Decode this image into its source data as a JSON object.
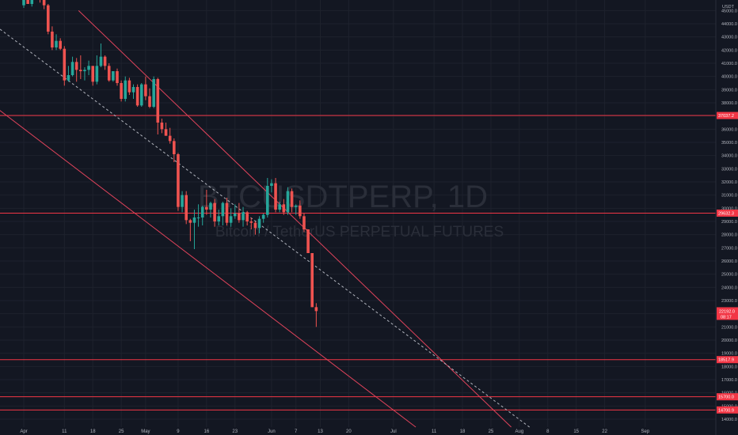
{
  "chart_data": {
    "type": "candlestick",
    "watermark": {
      "title": "BTCUSDTPERP, 1D",
      "subtitle": "Bitcoin / TetherUS PERPETUAL FUTURES"
    },
    "currency": "USDT",
    "ylim": [
      13400,
      45800
    ],
    "y_ticks": [
      14000,
      15000,
      16000,
      17000,
      18000,
      19000,
      20000,
      21000,
      22000,
      23000,
      24000,
      25000,
      26000,
      27000,
      28000,
      29000,
      30000,
      31000,
      32000,
      33000,
      34000,
      35000,
      36000,
      37000,
      38000,
      39000,
      40000,
      41000,
      42000,
      43000,
      44000,
      45000
    ],
    "x_ticks": [
      {
        "label": "Apr",
        "day": 0
      },
      {
        "label": "11",
        "day": 10
      },
      {
        "label": "18",
        "day": 17
      },
      {
        "label": "25",
        "day": 24
      },
      {
        "label": "May",
        "day": 30
      },
      {
        "label": "9",
        "day": 38
      },
      {
        "label": "16",
        "day": 45
      },
      {
        "label": "23",
        "day": 52
      },
      {
        "label": "Jun",
        "day": 61
      },
      {
        "label": "7",
        "day": 67
      },
      {
        "label": "13",
        "day": 73
      },
      {
        "label": "20",
        "day": 80
      },
      {
        "label": "Jul",
        "day": 91
      },
      {
        "label": "11",
        "day": 101
      },
      {
        "label": "18",
        "day": 108
      },
      {
        "label": "25",
        "day": 115
      },
      {
        "label": "Aug",
        "day": 122
      },
      {
        "label": "8",
        "day": 129
      },
      {
        "label": "15",
        "day": 136
      },
      {
        "label": "22",
        "day": 143
      },
      {
        "label": "Sep",
        "day": 153
      }
    ],
    "candles": [
      [
        45400,
        46600,
        45200,
        46300
      ],
      [
        46300,
        47400,
        45600,
        45500
      ],
      [
        45500,
        46000,
        45300,
        46200
      ],
      [
        46200,
        46900,
        45800,
        46300
      ],
      [
        46300,
        46600,
        45600,
        46100
      ],
      [
        46100,
        46400,
        45100,
        45400
      ],
      [
        45400,
        45500,
        43200,
        43400
      ],
      [
        43400,
        43800,
        42000,
        42200
      ],
      [
        42200,
        43200,
        42000,
        42700
      ],
      [
        42700,
        42900,
        42000,
        42100
      ],
      [
        42100,
        42300,
        39300,
        39700
      ],
      [
        39700,
        40800,
        39600,
        40100
      ],
      [
        40100,
        41500,
        40000,
        41100
      ],
      [
        41100,
        41400,
        39600,
        40500
      ],
      [
        40500,
        41600,
        39800,
        40400
      ],
      [
        40400,
        40700,
        39700,
        40500
      ],
      [
        40500,
        41200,
        40100,
        40800
      ],
      [
        40800,
        40800,
        39300,
        39600
      ],
      [
        39600,
        41600,
        39400,
        40800
      ],
      [
        40800,
        42500,
        40700,
        41500
      ],
      [
        41500,
        41600,
        40500,
        40800
      ],
      [
        40800,
        41000,
        39600,
        39700
      ],
      [
        39700,
        40400,
        39600,
        40400
      ],
      [
        40400,
        40600,
        39300,
        39500
      ],
      [
        39500,
        39700,
        38100,
        38300
      ],
      [
        38300,
        40000,
        38100,
        39700
      ],
      [
        39700,
        39900,
        38600,
        38800
      ],
      [
        38800,
        39400,
        38300,
        39200
      ],
      [
        39200,
        39400,
        37700,
        37800
      ],
      [
        37800,
        39500,
        37700,
        39400
      ],
      [
        39400,
        40000,
        38200,
        38500
      ],
      [
        38500,
        39100,
        37600,
        37700
      ],
      [
        37700,
        40000,
        37600,
        39800
      ],
      [
        39800,
        39900,
        35600,
        36500
      ],
      [
        36500,
        36800,
        35700,
        36000
      ],
      [
        36000,
        36500,
        35500,
        35500
      ],
      [
        35500,
        36100,
        34900,
        35100
      ],
      [
        35100,
        35300,
        33500,
        34100
      ],
      [
        34100,
        34200,
        29800,
        30100
      ],
      [
        30100,
        31300,
        29700,
        31000
      ],
      [
        31000,
        31300,
        28800,
        29100
      ],
      [
        29100,
        29200,
        27500,
        28900
      ],
      [
        28900,
        29900,
        26900,
        29300
      ],
      [
        29300,
        30300,
        28600,
        29300
      ],
      [
        29300,
        30200,
        28700,
        30100
      ],
      [
        30100,
        31400,
        29500,
        29900
      ],
      [
        29900,
        30500,
        29300,
        30400
      ],
      [
        30400,
        30700,
        28600,
        29000
      ],
      [
        29000,
        29900,
        28700,
        29400
      ],
      [
        29400,
        30500,
        28700,
        30400
      ],
      [
        30400,
        30800,
        28700,
        28900
      ],
      [
        28900,
        30000,
        28600,
        29400
      ],
      [
        29400,
        30300,
        29200,
        29600
      ],
      [
        29600,
        30400,
        28900,
        29100
      ],
      [
        29100,
        30100,
        28600,
        29700
      ],
      [
        29700,
        29800,
        28700,
        29000
      ],
      [
        29000,
        29300,
        28400,
        28900
      ],
      [
        28900,
        29000,
        28000,
        28500
      ],
      [
        28500,
        29400,
        28100,
        29200
      ],
      [
        29200,
        29600,
        28900,
        29500
      ],
      [
        29500,
        32300,
        29300,
        31700
      ],
      [
        31700,
        32200,
        31200,
        31900
      ],
      [
        31900,
        32300,
        29700,
        29900
      ],
      [
        29900,
        30500,
        29700,
        30300
      ],
      [
        30300,
        30700,
        29500,
        29700
      ],
      [
        29700,
        31600,
        29500,
        31300
      ],
      [
        31300,
        31500,
        29700,
        30100
      ],
      [
        30100,
        30300,
        29500,
        30200
      ],
      [
        30200,
        30600,
        29200,
        29400
      ],
      [
        29400,
        29600,
        28200,
        28400
      ],
      [
        28400,
        28400,
        26600,
        26600
      ],
      [
        26600,
        26600,
        22500,
        22500
      ],
      [
        22500,
        22800,
        21000,
        22200
      ]
    ],
    "levels": [
      {
        "value": 37037.2,
        "label": "37037.2",
        "color": "#f23645"
      },
      {
        "value": 29632.3,
        "label": "29632.3",
        "color": "#f23645"
      },
      {
        "value": 18517.9,
        "label": "18517.9",
        "color": "#f23645"
      },
      {
        "value": 15700.0,
        "label": "15700.0",
        "color": "#f23645"
      },
      {
        "value": 14700.9,
        "label": "14700.9",
        "color": "#f23645"
      }
    ],
    "last_price": {
      "value": 22192.0,
      "label": "22192.0",
      "countdown": "08:17",
      "color": "#f23645"
    },
    "channel": {
      "color": "#e0435b",
      "midline_color": "#b2b5be",
      "upper": [
        [
          13.5,
          45000
        ],
        [
          120,
          13400
        ]
      ],
      "lower": [
        [
          -19,
          40500
        ],
        [
          96.5,
          13400
        ]
      ],
      "middle": [
        [
          -18,
          46400
        ],
        [
          124.5,
          13400
        ]
      ]
    },
    "colors": {
      "background": "#131722",
      "grid": "#1e222d",
      "up": "#26a69a",
      "down": "#ef5350",
      "axis_text": "#b2b5be"
    },
    "grid": true
  }
}
